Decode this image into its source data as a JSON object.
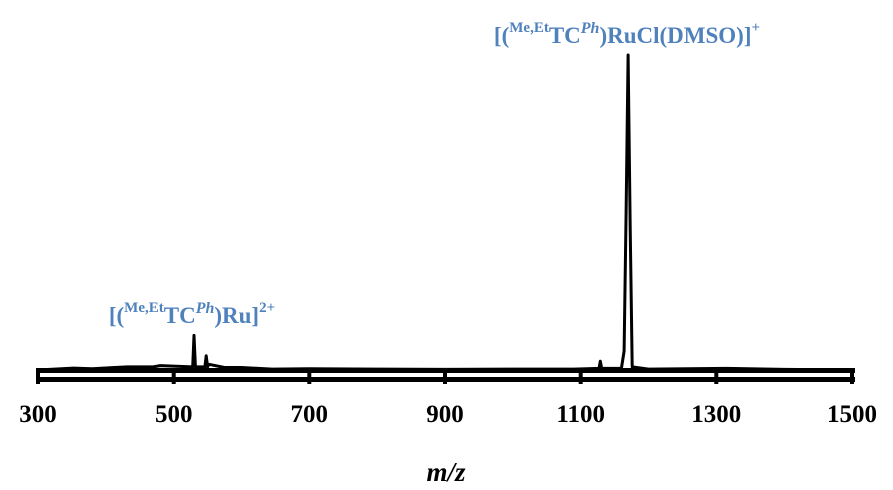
{
  "chart_data": {
    "type": "line",
    "title": "",
    "xlabel": "m/z",
    "ylabel": "",
    "xlim": [
      300,
      1500
    ],
    "ylim": [
      0,
      100
    ],
    "grid": false,
    "x_ticks": [
      300,
      500,
      700,
      900,
      1100,
      1300,
      1500
    ],
    "colors": {
      "trace": "#000000",
      "annotation": "#4f81bd"
    },
    "series": [
      {
        "values": [
          {
            "x": 300,
            "y": 0
          },
          {
            "x": 352,
            "y": 0.6
          },
          {
            "x": 380,
            "y": 0.4
          },
          {
            "x": 413,
            "y": 0.8
          },
          {
            "x": 432,
            "y": 1.0
          },
          {
            "x": 470,
            "y": 1.0
          },
          {
            "x": 480,
            "y": 1.4
          },
          {
            "x": 528,
            "y": 1
          },
          {
            "x": 530,
            "y": 11
          },
          {
            "x": 532,
            "y": 1
          },
          {
            "x": 546,
            "y": 1
          },
          {
            "x": 548,
            "y": 4.5
          },
          {
            "x": 550,
            "y": 1
          },
          {
            "x": 552,
            "y": 1.8
          },
          {
            "x": 575,
            "y": 0.8
          },
          {
            "x": 600,
            "y": 0.8
          },
          {
            "x": 645,
            "y": 0.3
          },
          {
            "x": 700,
            "y": 0.4
          },
          {
            "x": 800,
            "y": 0.3
          },
          {
            "x": 900,
            "y": 0.2
          },
          {
            "x": 1000,
            "y": 0.3
          },
          {
            "x": 1090,
            "y": 0.3
          },
          {
            "x": 1127,
            "y": 0.5
          },
          {
            "x": 1129,
            "y": 2.8
          },
          {
            "x": 1131,
            "y": 0.5
          },
          {
            "x": 1160,
            "y": 0.5
          },
          {
            "x": 1164,
            "y": 6
          },
          {
            "x": 1167,
            "y": 50
          },
          {
            "x": 1170,
            "y": 100
          },
          {
            "x": 1173,
            "y": 45
          },
          {
            "x": 1176,
            "y": 1
          },
          {
            "x": 1200,
            "y": 0.3
          },
          {
            "x": 1315,
            "y": 0.5
          },
          {
            "x": 1400,
            "y": 0.2
          },
          {
            "x": 1500,
            "y": 0
          }
        ]
      }
    ],
    "annotations": [
      {
        "id": "dication",
        "x": 530,
        "text": [
          "[(",
          "Me,Et",
          "TC",
          "Ph",
          ")Ru]",
          "2+"
        ]
      },
      {
        "id": "monocation",
        "x": 1170,
        "text": [
          "[(",
          "Me,Et",
          "TC",
          "Ph",
          ")RuCl(DMSO)]",
          "+"
        ]
      }
    ]
  }
}
